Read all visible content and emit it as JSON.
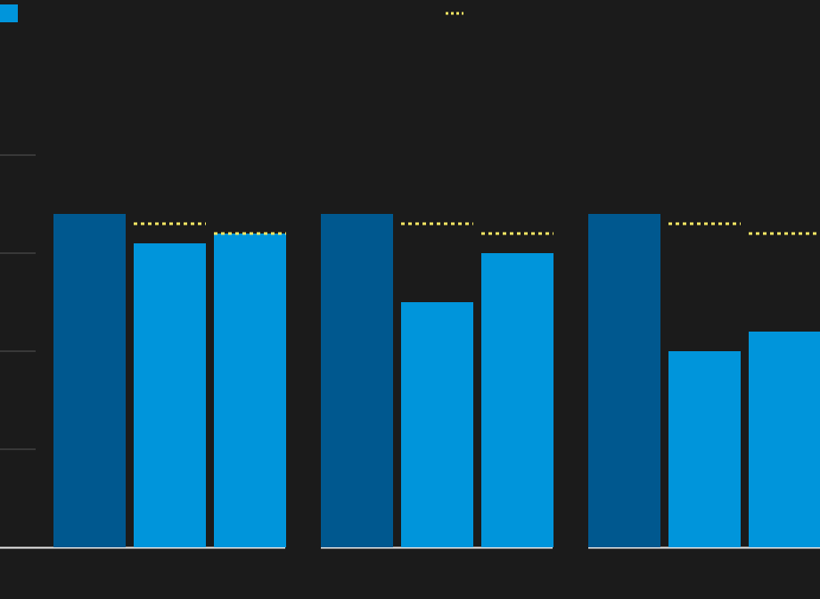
{
  "chart_data": {
    "type": "bar",
    "categories": [
      null,
      null,
      null
    ],
    "series": [
      {
        "color": "#00588f",
        "values": [
          3.4,
          3.4,
          3.4
        ]
      },
      {
        "color": "#0095db",
        "values": [
          3.1,
          2.5,
          2.0
        ],
        "target_values": [
          3.3,
          3.3,
          3.3
        ],
        "target_color": "#f5e663"
      },
      {
        "color": "#0095db",
        "values": [
          3.2,
          3.0,
          2.2
        ],
        "target_values": [
          3.2,
          3.2,
          3.2
        ],
        "target_color": "#f5e663"
      }
    ],
    "ylim": [
      0,
      4
    ],
    "yticks": [
      0,
      1,
      2,
      3,
      4
    ],
    "baseline_color": "#e8e8e8",
    "tick_color": "#555555"
  }
}
